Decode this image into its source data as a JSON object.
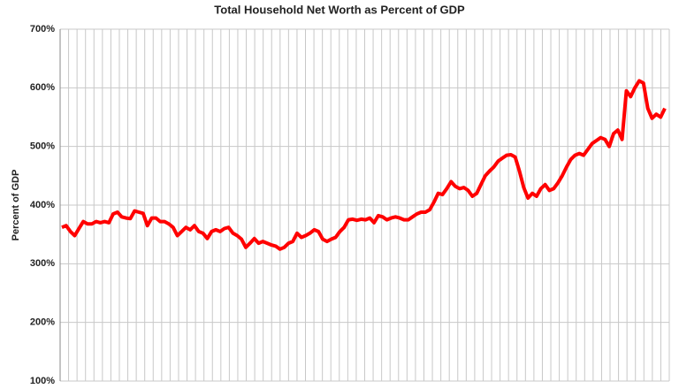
{
  "chart_data": {
    "type": "line",
    "title": "Total Household Net Worth as Percent of GDP",
    "y_label": "Percent of GDP",
    "ylim": [
      100,
      700
    ],
    "yticks": [
      {
        "value": 100,
        "label": "100%"
      },
      {
        "value": 200,
        "label": "200%"
      },
      {
        "value": 300,
        "label": "300%"
      },
      {
        "value": 400,
        "label": "400%"
      },
      {
        "value": 500,
        "label": "500%"
      },
      {
        "value": 600,
        "label": "600%"
      },
      {
        "value": 700,
        "label": "700%"
      }
    ],
    "grid": true,
    "color": "#ff0000",
    "values": [
      362,
      365,
      355,
      348,
      360,
      372,
      368,
      368,
      372,
      370,
      372,
      370,
      385,
      388,
      380,
      378,
      377,
      390,
      388,
      386,
      365,
      378,
      378,
      372,
      372,
      368,
      362,
      348,
      355,
      362,
      358,
      365,
      355,
      352,
      343,
      355,
      358,
      355,
      360,
      362,
      352,
      348,
      342,
      328,
      335,
      343,
      335,
      338,
      335,
      332,
      330,
      325,
      328,
      335,
      338,
      352,
      345,
      348,
      352,
      358,
      355,
      342,
      338,
      342,
      345,
      355,
      362,
      375,
      376,
      374,
      376,
      375,
      378,
      370,
      382,
      380,
      375,
      378,
      380,
      378,
      375,
      375,
      380,
      385,
      388,
      388,
      392,
      405,
      420,
      418,
      428,
      440,
      432,
      428,
      430,
      425,
      415,
      420,
      435,
      450,
      458,
      465,
      475,
      480,
      485,
      486,
      482,
      458,
      430,
      412,
      420,
      415,
      428,
      435,
      425,
      428,
      438,
      450,
      465,
      478,
      485,
      488,
      485,
      495,
      505,
      510,
      515,
      512,
      500,
      522,
      528,
      512,
      595,
      585,
      600,
      612,
      608,
      565,
      548,
      555,
      550,
      565
    ]
  }
}
